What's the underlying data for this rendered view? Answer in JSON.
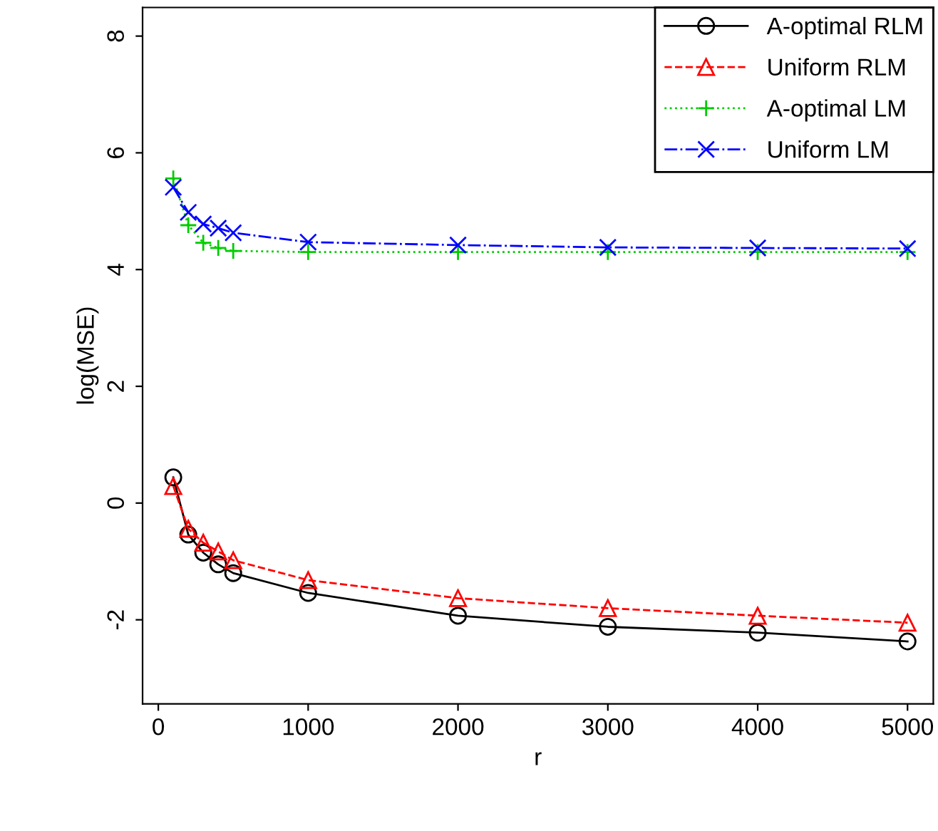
{
  "chart_data": {
    "type": "line",
    "xlabel": "r",
    "ylabel": "log(MSE)",
    "x": [
      100,
      200,
      300,
      400,
      500,
      1000,
      2000,
      3000,
      4000,
      5000
    ],
    "series": [
      {
        "name": "A-optimal RLM",
        "color": "#000000",
        "marker": "circle",
        "line_style": "solid",
        "values": [
          0.44,
          -0.54,
          -0.85,
          -1.05,
          -1.2,
          -1.54,
          -1.93,
          -2.12,
          -2.22,
          -2.37
        ]
      },
      {
        "name": "Uniform RLM",
        "color": "#ff0000",
        "marker": "triangle",
        "line_style": "dashed",
        "values": [
          0.29,
          -0.44,
          -0.68,
          -0.83,
          -0.98,
          -1.32,
          -1.63,
          -1.8,
          -1.93,
          -2.05
        ]
      },
      {
        "name": "A-optimal LM",
        "color": "#00cd00",
        "marker": "plus",
        "line_style": "dotted",
        "values": [
          5.56,
          4.76,
          4.46,
          4.37,
          4.32,
          4.3,
          4.3,
          4.3,
          4.3,
          4.3
        ]
      },
      {
        "name": "Uniform LM",
        "color": "#0000ff",
        "marker": "x",
        "line_style": "dashdot",
        "values": [
          5.41,
          4.98,
          4.78,
          4.71,
          4.63,
          4.47,
          4.42,
          4.38,
          4.37,
          4.36
        ]
      }
    ],
    "xlim": [
      -105,
      5172
    ],
    "ylim": [
      -3.44,
      8.49
    ],
    "xticks": [
      0,
      1000,
      2000,
      3000,
      4000,
      5000
    ],
    "yticks": [
      -2,
      0,
      2,
      4,
      6,
      8
    ],
    "grid": false,
    "legend": "top right"
  }
}
